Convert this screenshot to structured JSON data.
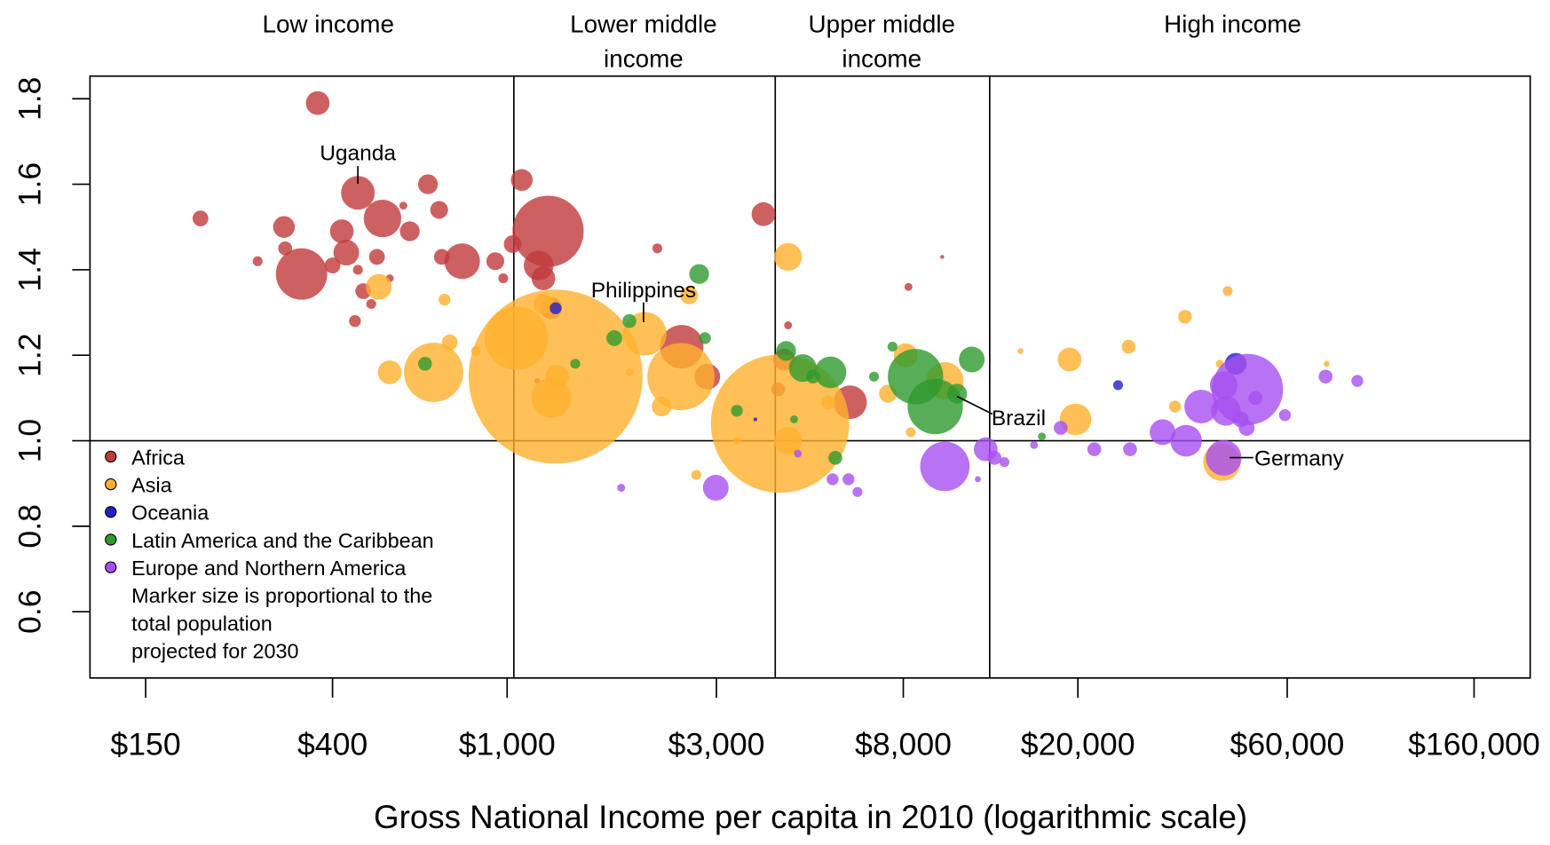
{
  "chart_data": {
    "type": "scatter",
    "xlabel": "Gross National Income per capita in 2010 (logarithmic scale)",
    "log_x": true,
    "xlim": [
      112,
      214800
    ],
    "ylim": [
      0.445,
      1.853
    ],
    "xticks": [
      {
        "value": 150,
        "label": "$150"
      },
      {
        "value": 400,
        "label": "$400"
      },
      {
        "value": 1000,
        "label": "$1,000"
      },
      {
        "value": 3000,
        "label": "$3,000"
      },
      {
        "value": 8000,
        "label": "$8,000"
      },
      {
        "value": 20000,
        "label": "$20,000"
      },
      {
        "value": 60000,
        "label": "$60,000"
      },
      {
        "value": 160000,
        "label": "$160,000"
      }
    ],
    "yticks": [
      0.6,
      0.8,
      {
        "value": 1,
        "label": "1.0"
      },
      1.2,
      1.4,
      1.6,
      1.8
    ],
    "thresholds": [
      1036,
      4085,
      12590
    ],
    "hline": 1,
    "income_groups": [
      [
        "Low income"
      ],
      [
        "Lower middle",
        "income"
      ],
      [
        "Upper middle",
        "income"
      ],
      [
        "High income"
      ]
    ],
    "annotations": [
      "Uganda",
      "Philippines",
      "Brazil",
      "Germany"
    ],
    "legend": "upper left",
    "note": [
      "Marker size is proportional to the",
      "total population",
      "projected for 2030"
    ],
    "opacity": 0.8,
    "series": [
      {
        "name": "Africa",
        "color": "#c0393b",
        "x": [
          370,
          200,
          457,
          660,
          520,
          700,
          580,
          310,
          420,
          600,
          340,
          312,
          270,
          430,
          400,
          505,
          457,
          470,
          540,
          490,
          450,
          710,
          790,
          940,
          980,
          1080,
          1030,
          1240,
          1180,
          1210,
          1260,
          2200,
          2500,
          2860,
          3840,
          4370,
          4280,
          4150,
          6050,
          8220,
          9810,
          1170
        ],
        "values": [
          1.79,
          1.52,
          1.58,
          1.6,
          1.52,
          1.54,
          1.55,
          1.5,
          1.49,
          1.49,
          1.39,
          1.45,
          1.42,
          1.44,
          1.41,
          1.43,
          1.4,
          1.35,
          1.38,
          1.32,
          1.28,
          1.43,
          1.42,
          1.42,
          1.38,
          1.61,
          1.46,
          1.49,
          1.41,
          1.38,
          1.31,
          1.45,
          1.22,
          1.15,
          1.53,
          1.27,
          1.19,
          1.12,
          1.09,
          1.36,
          1.43,
          1.14
        ],
        "sizes": [
          12,
          8,
          17,
          10,
          19,
          9,
          4,
          11,
          12,
          10,
          26,
          7,
          5,
          13,
          8,
          8,
          5,
          8,
          4,
          5,
          6,
          8,
          18,
          9,
          5,
          11,
          9,
          36,
          15,
          12,
          11,
          5,
          22,
          13,
          12,
          4,
          11,
          7,
          17,
          4,
          2,
          3
        ]
      },
      {
        "name": "Asia",
        "color": "#ffb02e",
        "x": [
          4190,
          1290,
          1050,
          1260,
          1300,
          2490,
          2060,
          680,
          510,
          540,
          740,
          720,
          850,
          1210,
          2250,
          1900,
          2600,
          4370,
          4370,
          5400,
          2700,
          3340,
          7380,
          8100,
          9950,
          8320,
          19150,
          19760,
          14800,
          26100,
          35100,
          33300,
          43900,
          42600,
          73800,
          42100
        ],
        "values": [
          1.04,
          1.15,
          1.24,
          1.1,
          1.15,
          1.15,
          1.25,
          1.16,
          1.36,
          1.16,
          1.23,
          1.33,
          1.21,
          1.32,
          1.08,
          1.16,
          1.34,
          1.43,
          1.0,
          1.09,
          0.92,
          1.0,
          1.11,
          1.2,
          1.14,
          1.02,
          1.19,
          1.05,
          1.21,
          1.22,
          1.29,
          1.08,
          1.35,
          0.95,
          1.18,
          1.18
        ],
        "sizes": [
          70,
          88,
          32,
          20,
          12,
          34,
          22,
          30,
          13,
          12,
          8,
          6,
          5,
          10,
          10,
          4,
          9,
          14,
          14,
          7,
          5,
          4,
          9,
          12,
          19,
          5,
          12,
          16,
          3,
          7,
          7,
          6,
          5,
          19,
          3,
          4
        ]
      },
      {
        "name": "Oceania",
        "color": "#2020c8",
        "x": [
          1290,
          45800,
          24700,
          3680
        ],
        "values": [
          1.31,
          1.18,
          1.13,
          1.05
        ],
        "sizes": [
          6,
          11,
          5,
          2
        ]
      },
      {
        "name": "Latin America and the Caribbean",
        "color": "#2e9a2e",
        "x": [
          2740,
          1900,
          1755,
          2825,
          1430,
          650,
          4325,
          4720,
          5460,
          4980,
          8530,
          9460,
          11460,
          10610,
          6860,
          7560,
          3340,
          5600,
          4510,
          16560
        ],
        "values": [
          1.39,
          1.28,
          1.24,
          1.24,
          1.18,
          1.18,
          1.21,
          1.17,
          1.16,
          1.15,
          1.15,
          1.08,
          1.19,
          1.11,
          1.15,
          1.22,
          1.07,
          0.96,
          1.05,
          1.01
        ],
        "sizes": [
          10,
          7,
          8,
          6,
          5,
          7,
          10,
          14,
          16,
          7,
          28,
          28,
          13,
          10,
          5,
          5,
          6,
          7,
          4,
          4
        ]
      },
      {
        "name": "Europe and Northern America",
        "color": "#a64ff0",
        "x": [
          2990,
          1820,
          9950,
          12330,
          12910,
          13600,
          18280,
          21800,
          26300,
          31200,
          35300,
          38200,
          48700,
          43000,
          43000,
          43500,
          47000,
          48500,
          50800,
          59300,
          73400,
          86700,
          6000,
          5520,
          6290,
          4600,
          15890,
          11830
        ],
        "values": [
          0.89,
          0.89,
          0.94,
          0.98,
          0.96,
          0.95,
          1.03,
          0.98,
          0.98,
          1.02,
          1.0,
          1.08,
          1.12,
          1.13,
          0.96,
          1.07,
          1.05,
          1.03,
          1.1,
          1.06,
          1.15,
          1.14,
          0.91,
          0.91,
          0.88,
          0.97,
          0.99,
          0.91
        ],
        "sizes": [
          13,
          4,
          25,
          12,
          7,
          5,
          7,
          7,
          7,
          13,
          16,
          17,
          36,
          14,
          18,
          15,
          8,
          8,
          7,
          6,
          7,
          6,
          6,
          6,
          5,
          4,
          4,
          3
        ]
      }
    ]
  }
}
